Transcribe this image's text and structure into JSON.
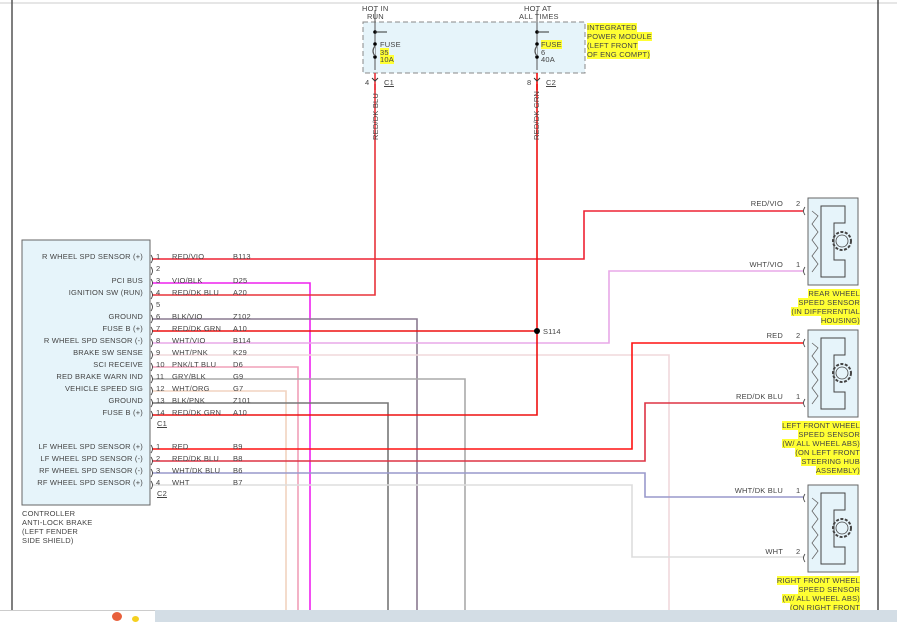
{
  "fuse_module": {
    "hot_in_run": [
      "HOT IN",
      "RUN"
    ],
    "hot_at_all_times": [
      "HOT AT",
      "ALL TIMES"
    ],
    "name": [
      "INTEGRATED",
      "POWER MODULE",
      "(LEFT FRONT",
      "OF ENG COMPT)"
    ],
    "fuse_left": {
      "label": "FUSE",
      "number": "35",
      "rating": "10A",
      "pin": "4",
      "connector": "C1",
      "wire": "RED/DK BLU"
    },
    "fuse_right": {
      "label": "FUSE",
      "number": "6",
      "rating": "40A",
      "pin": "8",
      "connector": "C2",
      "wire": "RED/DK GRN"
    }
  },
  "controller": {
    "name": [
      "CONTROLLER",
      "ANTI-LOCK BRAKE",
      "(LEFT FENDER",
      "SIDE SHIELD)"
    ],
    "c1_label": "C1",
    "c2_label": "C2",
    "c1_pins": [
      {
        "pin": "1",
        "function": "R WHEEL SPD SENSOR (+)",
        "color": "RED/VIO",
        "circuit": "B113",
        "hex": "#ee2233"
      },
      {
        "pin": "2",
        "function": "",
        "color": "",
        "circuit": "",
        "hex": ""
      },
      {
        "pin": "3",
        "function": "PCI BUS",
        "color": "VIO/BLK",
        "circuit": "D25",
        "hex": "#ee22ee"
      },
      {
        "pin": "4",
        "function": "IGNITION SW (RUN)",
        "color": "RED/DK BLU",
        "circuit": "A20",
        "hex": "#e8333a"
      },
      {
        "pin": "5",
        "function": "",
        "color": "",
        "circuit": "",
        "hex": ""
      },
      {
        "pin": "6",
        "function": "GROUND",
        "color": "BLK/VIO",
        "circuit": "Z102",
        "hex": "#8a7a90"
      },
      {
        "pin": "7",
        "function": "FUSE B (+)",
        "color": "RED/DK GRN",
        "circuit": "A10",
        "hex": "#ee1111"
      },
      {
        "pin": "8",
        "function": "R WHEEL SPD SENSOR (-)",
        "color": "WHT/VIO",
        "circuit": "B114",
        "hex": "#e8a8e8"
      },
      {
        "pin": "9",
        "function": "BRAKE SW SENSE",
        "color": "WHT/PNK",
        "circuit": "K29",
        "hex": "#f0d8dc"
      },
      {
        "pin": "10",
        "function": "SCI RECEIVE",
        "color": "PNK/LT BLU",
        "circuit": "D6",
        "hex": "#f0a0b8"
      },
      {
        "pin": "11",
        "function": "RED BRAKE WARN IND",
        "color": "GRY/BLK",
        "circuit": "G9",
        "hex": "#aaaaaa"
      },
      {
        "pin": "12",
        "function": "VEHICLE SPEED SIG",
        "color": "WHT/ORG",
        "circuit": "G7",
        "hex": "#f2d4c0"
      },
      {
        "pin": "13",
        "function": "GROUND",
        "color": "BLK/PNK",
        "circuit": "Z101",
        "hex": "#777777"
      },
      {
        "pin": "14",
        "function": "FUSE B (+)",
        "color": "RED/DK GRN",
        "circuit": "A10",
        "hex": "#ee1111"
      }
    ],
    "c2_pins": [
      {
        "pin": "1",
        "function": "LF WHEEL SPD SENSOR (+)",
        "color": "RED",
        "circuit": "B9",
        "hex": "#ff1111"
      },
      {
        "pin": "2",
        "function": "LF WHEEL SPD SENSOR (-)",
        "color": "RED/DK BLU",
        "circuit": "B8",
        "hex": "#dd3344"
      },
      {
        "pin": "3",
        "function": "RF WHEEL SPD SENSOR (-)",
        "color": "WHT/DK BLU",
        "circuit": "B6",
        "hex": "#9999cc"
      },
      {
        "pin": "4",
        "function": "RF WHEEL SPD SENSOR (+)",
        "color": "WHT",
        "circuit": "B7",
        "hex": "#dddddd"
      }
    ]
  },
  "splice": "S114",
  "sensors": [
    {
      "name": [
        "REAR WHEEL",
        "SPEED SENSOR",
        "(IN DIFFERENTIAL",
        "HOUSING)"
      ],
      "top_pin": "2",
      "top_wire": "RED/VIO",
      "bottom_pin": "1",
      "bottom_wire": "WHT/VIO"
    },
    {
      "name": [
        "LEFT FRONT WHEEL",
        "SPEED SENSOR",
        "(W/ ALL WHEEL ABS)",
        "(ON LEFT FRONT",
        "STEERING HUB",
        "ASSEMBLY)"
      ],
      "top_pin": "2",
      "top_wire": "RED",
      "bottom_pin": "1",
      "bottom_wire": "RED/DK BLU"
    },
    {
      "name": [
        "RIGHT FRONT WHEEL",
        "SPEED SENSOR",
        "(W/ ALL WHEEL ABS)",
        "(ON RIGHT FRONT"
      ],
      "top_pin": "1",
      "top_wire": "WHT/DK BLU",
      "bottom_pin": "2",
      "bottom_wire": "WHT"
    }
  ]
}
